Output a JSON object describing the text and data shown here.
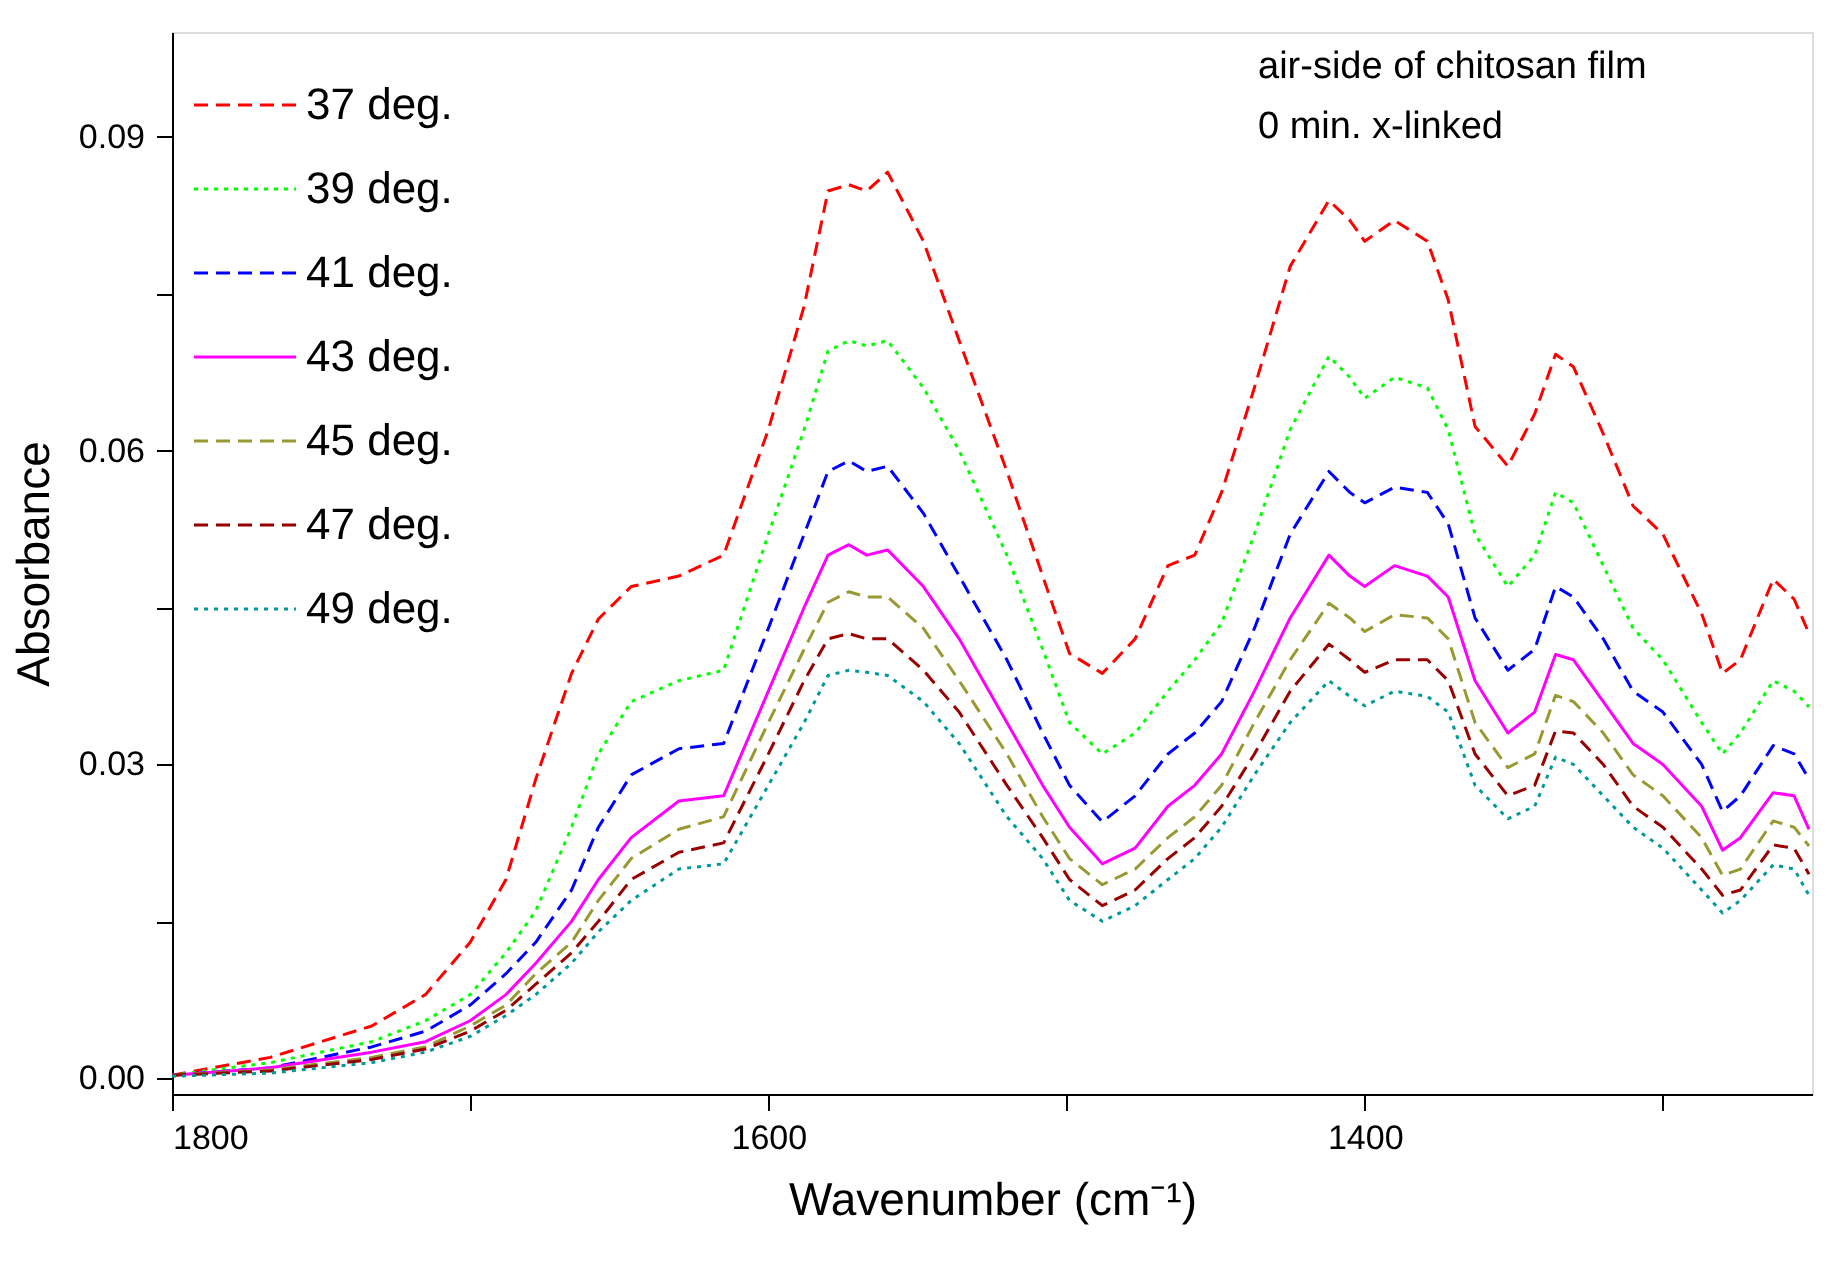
{
  "chart_data": {
    "type": "line",
    "xlabel": "Wavenumber (cm⁻¹)",
    "ylabel": "Absorbance",
    "annotations": [
      "air-side of chitosan film",
      "0 min. x-linked"
    ],
    "x": [
      1800,
      1767,
      1733,
      1715,
      1700,
      1688,
      1678,
      1666,
      1657,
      1646,
      1630,
      1615,
      1600,
      1588,
      1580,
      1573,
      1567,
      1560,
      1548,
      1536,
      1520,
      1508,
      1499,
      1488,
      1477,
      1466,
      1457,
      1448,
      1437,
      1425,
      1412,
      1405,
      1400,
      1390,
      1379,
      1372,
      1363,
      1352,
      1343,
      1336,
      1330,
      1320,
      1310,
      1300,
      1287,
      1280,
      1274,
      1263,
      1256,
      1251
    ],
    "series": [
      {
        "name": "37 deg.",
        "color": "#ff0000",
        "line_style": "dashed",
        "values": [
          0.0003,
          0.002,
          0.005,
          0.008,
          0.013,
          0.019,
          0.0286,
          0.0387,
          0.0439,
          0.047,
          0.048,
          0.05,
          0.062,
          0.0738,
          0.0848,
          0.0854,
          0.0848,
          0.0866,
          0.08,
          0.0705,
          0.058,
          0.048,
          0.0406,
          0.0387,
          0.042,
          0.049,
          0.05,
          0.056,
          0.066,
          0.0776,
          0.0839,
          0.082,
          0.08,
          0.082,
          0.08,
          0.0744,
          0.0623,
          0.0585,
          0.0635,
          0.0692,
          0.068,
          0.0616,
          0.0547,
          0.052,
          0.0444,
          0.0387,
          0.04,
          0.0477,
          0.0458,
          0.0425
        ]
      },
      {
        "name": "39 deg.",
        "color": "#00ff00",
        "line_style": "dotted",
        "values": [
          0.0003,
          0.0015,
          0.0035,
          0.0055,
          0.008,
          0.012,
          0.016,
          0.024,
          0.031,
          0.036,
          0.038,
          0.039,
          0.052,
          0.062,
          0.0695,
          0.0705,
          0.07,
          0.0705,
          0.066,
          0.06,
          0.05,
          0.041,
          0.034,
          0.031,
          0.033,
          0.037,
          0.04,
          0.0435,
          0.052,
          0.062,
          0.069,
          0.067,
          0.065,
          0.067,
          0.066,
          0.062,
          0.052,
          0.047,
          0.05,
          0.056,
          0.055,
          0.049,
          0.043,
          0.04,
          0.034,
          0.031,
          0.033,
          0.038,
          0.037,
          0.0355
        ]
      },
      {
        "name": "41 deg.",
        "color": "#0000ff",
        "line_style": "dashed",
        "values": [
          0.0003,
          0.001,
          0.003,
          0.0045,
          0.007,
          0.01,
          0.013,
          0.018,
          0.024,
          0.029,
          0.0315,
          0.032,
          0.043,
          0.052,
          0.058,
          0.059,
          0.058,
          0.0585,
          0.054,
          0.048,
          0.04,
          0.033,
          0.028,
          0.0245,
          0.027,
          0.031,
          0.033,
          0.036,
          0.043,
          0.052,
          0.058,
          0.056,
          0.055,
          0.0565,
          0.056,
          0.053,
          0.044,
          0.039,
          0.041,
          0.047,
          0.046,
          0.042,
          0.037,
          0.035,
          0.03,
          0.0255,
          0.027,
          0.0318,
          0.031,
          0.0286
        ]
      },
      {
        "name": "43 deg.",
        "color": "#ff00ff",
        "line_style": "solid",
        "values": [
          0.0003,
          0.001,
          0.0025,
          0.0035,
          0.0055,
          0.008,
          0.011,
          0.015,
          0.019,
          0.023,
          0.0265,
          0.027,
          0.037,
          0.045,
          0.05,
          0.051,
          0.05,
          0.0505,
          0.047,
          0.042,
          0.034,
          0.028,
          0.024,
          0.0205,
          0.022,
          0.026,
          0.028,
          0.031,
          0.037,
          0.044,
          0.05,
          0.048,
          0.047,
          0.049,
          0.048,
          0.046,
          0.038,
          0.033,
          0.035,
          0.0405,
          0.04,
          0.036,
          0.032,
          0.03,
          0.026,
          0.0218,
          0.023,
          0.0273,
          0.027,
          0.0238
        ]
      },
      {
        "name": "45 deg.",
        "color": "#999933",
        "line_style": "dashed",
        "values": [
          0.0003,
          0.0008,
          0.002,
          0.003,
          0.005,
          0.007,
          0.01,
          0.013,
          0.017,
          0.021,
          0.0238,
          0.025,
          0.034,
          0.041,
          0.0455,
          0.0465,
          0.046,
          0.046,
          0.043,
          0.038,
          0.031,
          0.025,
          0.021,
          0.0185,
          0.02,
          0.023,
          0.025,
          0.028,
          0.034,
          0.04,
          0.0454,
          0.044,
          0.0427,
          0.0443,
          0.044,
          0.042,
          0.034,
          0.0297,
          0.031,
          0.0366,
          0.036,
          0.033,
          0.029,
          0.027,
          0.023,
          0.0194,
          0.02,
          0.0246,
          0.024,
          0.0222
        ]
      },
      {
        "name": "47 deg.",
        "color": "#990000",
        "line_style": "dashed",
        "values": [
          0.0003,
          0.0007,
          0.0018,
          0.0028,
          0.0045,
          0.0065,
          0.009,
          0.012,
          0.015,
          0.019,
          0.0216,
          0.0225,
          0.031,
          0.038,
          0.042,
          0.0425,
          0.042,
          0.042,
          0.039,
          0.035,
          0.028,
          0.023,
          0.019,
          0.0165,
          0.018,
          0.021,
          0.023,
          0.026,
          0.031,
          0.037,
          0.0415,
          0.04,
          0.0388,
          0.04,
          0.04,
          0.038,
          0.031,
          0.027,
          0.028,
          0.0332,
          0.033,
          0.03,
          0.026,
          0.024,
          0.02,
          0.0175,
          0.018,
          0.0223,
          0.022,
          0.0195
        ]
      },
      {
        "name": "49 deg.",
        "color": "#009999",
        "line_style": "dotted",
        "values": [
          0.0002,
          0.0005,
          0.0015,
          0.0025,
          0.004,
          0.006,
          0.008,
          0.011,
          0.014,
          0.017,
          0.02,
          0.0205,
          0.028,
          0.034,
          0.0385,
          0.039,
          0.0388,
          0.0385,
          0.036,
          0.032,
          0.025,
          0.021,
          0.017,
          0.015,
          0.0165,
          0.019,
          0.021,
          0.024,
          0.029,
          0.034,
          0.038,
          0.0365,
          0.0356,
          0.037,
          0.0365,
          0.035,
          0.028,
          0.0248,
          0.026,
          0.0307,
          0.03,
          0.027,
          0.024,
          0.022,
          0.018,
          0.0158,
          0.017,
          0.0204,
          0.02,
          0.0175
        ]
      }
    ],
    "xlim": [
      1800,
      1250
    ],
    "xticks": [
      1800,
      {
        "value": 1700,
        "label": null
      },
      1600,
      {
        "value": 1500,
        "label": null
      },
      1400,
      {
        "value": 1300,
        "label": null
      }
    ],
    "ylim": [
      -0.0015,
      0.1
    ],
    "yticks": [
      {
        "value": 0,
        "label": "0.00"
      },
      {
        "value": 0.015,
        "label": null
      },
      {
        "value": 0.03,
        "label": "0.03"
      },
      {
        "value": 0.045,
        "label": null
      },
      {
        "value": 0.06,
        "label": "0.06"
      },
      {
        "value": 0.075,
        "label": null
      },
      {
        "value": 0.09,
        "label": "0.09"
      }
    ],
    "grid": false,
    "legend": "top left",
    "marker": "none"
  }
}
